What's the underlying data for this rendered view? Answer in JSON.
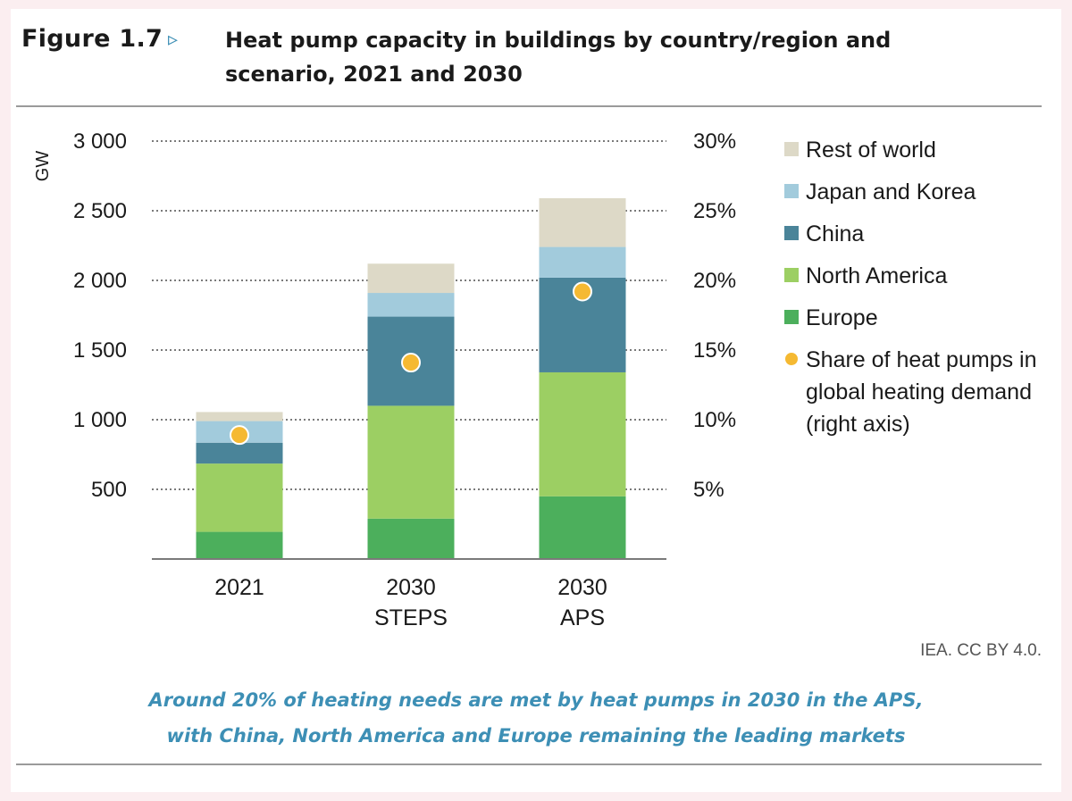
{
  "figure": {
    "label": "Figure 1.7",
    "arrow": "▹",
    "title": "Heat pump capacity in buildings by country/region and scenario, 2021 and 2030",
    "source": "IEA. CC BY 4.0.",
    "caption_line1": "Around 20% of heating needs are met by heat pumps in 2030 in the APS,",
    "caption_line2": "with China, North America and Europe remaining the leading markets"
  },
  "chart_data": {
    "type": "bar",
    "stacked": true,
    "categories": [
      {
        "line1": "2021",
        "line2": ""
      },
      {
        "line1": "2030",
        "line2": "STEPS"
      },
      {
        "line1": "2030",
        "line2": "APS"
      }
    ],
    "ylabel": "GW",
    "ylim": [
      0,
      3000
    ],
    "yticks": [
      {
        "value": 500,
        "label": "500"
      },
      {
        "value": 1000,
        "label": "1 000"
      },
      {
        "value": 1500,
        "label": "1 500"
      },
      {
        "value": 2000,
        "label": "2 000"
      },
      {
        "value": 2500,
        "label": "2 500"
      },
      {
        "value": 3000,
        "label": "3 000"
      }
    ],
    "y2lim": [
      0,
      30
    ],
    "y2ticks": [
      {
        "value": 5,
        "label": "5%"
      },
      {
        "value": 10,
        "label": "10%"
      },
      {
        "value": 15,
        "label": "15%"
      },
      {
        "value": 20,
        "label": "20%"
      },
      {
        "value": 25,
        "label": "25%"
      },
      {
        "value": 30,
        "label": "30%"
      }
    ],
    "grid": true,
    "series": [
      {
        "name": "Europe",
        "color": "#4caf5c",
        "values": [
          195,
          290,
          450
        ]
      },
      {
        "name": "North America",
        "color": "#9ccf63",
        "values": [
          490,
          810,
          890
        ]
      },
      {
        "name": "China",
        "color": "#4a8499",
        "values": [
          150,
          640,
          680
        ]
      },
      {
        "name": "Japan and Korea",
        "color": "#a2cbdc",
        "values": [
          155,
          170,
          220
        ]
      },
      {
        "name": "Rest of world",
        "color": "#ddd9c7",
        "values": [
          65,
          210,
          350
        ]
      }
    ],
    "share_series": {
      "name": "Share of heat pumps in global heating demand (right axis)",
      "color": "#f5b932",
      "values": [
        8.9,
        14.1,
        19.2
      ]
    },
    "legend_position": "right"
  }
}
